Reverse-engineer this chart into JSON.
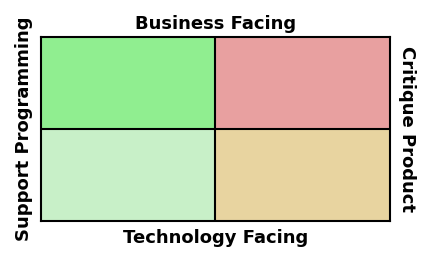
{
  "title_top": "Business Facing",
  "title_bottom": "Technology Facing",
  "label_left": "Support Programming",
  "label_right": "Critique Product",
  "quadrant_colors": {
    "top_left": "#90EE90",
    "top_right": "#E8A0A0",
    "bottom_left": "#C8F0C8",
    "bottom_right": "#E8D4A0"
  },
  "figsize": [
    4.31,
    2.62
  ],
  "dpi": 100,
  "font_size_axis_labels": 13,
  "font_weight": "bold",
  "grid_line_color": "#000000",
  "background_color": "#ffffff"
}
